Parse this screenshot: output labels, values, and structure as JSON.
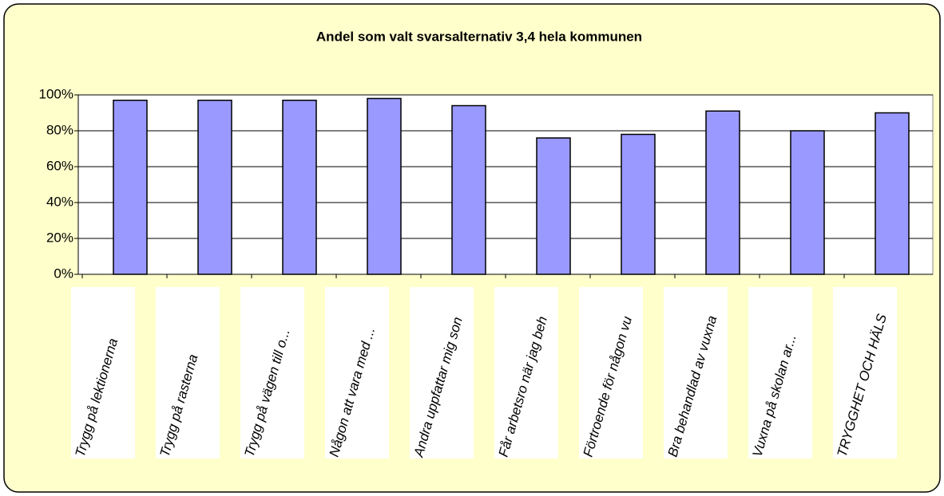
{
  "chart_data": {
    "type": "bar",
    "title": "Andel som valt svarsalternativ 3,4 hela kommunen",
    "categories": [
      "Trygg på lektionerna",
      "Trygg på rasterna",
      "Trygg på vägen till o...",
      "Någon att vara med ...",
      "Andra uppfattar mig son",
      "Får arbetsro när jag beh",
      "Förtroende för någon vu",
      "Bra behandlad av vuxna",
      "Vuxna på skolan ar...",
      "TRYGGHET OCH HÄLS"
    ],
    "values": [
      97,
      97,
      97,
      98,
      94,
      76,
      78,
      91,
      80,
      90
    ],
    "color": "#9999ff",
    "ylim": [
      0,
      100
    ],
    "yticks": [
      {
        "value": 0,
        "label": "0%"
      },
      {
        "value": 20,
        "label": "20%"
      },
      {
        "value": 40,
        "label": "40%"
      },
      {
        "value": 60,
        "label": "60%"
      },
      {
        "value": 80,
        "label": "80%"
      },
      {
        "value": 100,
        "label": "100%"
      }
    ],
    "grid": true
  }
}
